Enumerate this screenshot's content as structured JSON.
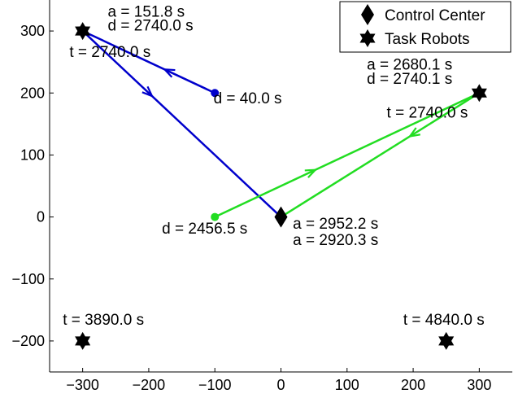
{
  "chart_data": {
    "type": "scatter",
    "xlim": [
      -350,
      350
    ],
    "ylim": [
      -250,
      350
    ],
    "x_ticks": [
      -300,
      -200,
      -100,
      0,
      100,
      200,
      300
    ],
    "y_ticks": [
      -200,
      -100,
      0,
      100,
      200,
      300
    ],
    "x_tick_labels": [
      "−300",
      "−200",
      "−100",
      "0",
      "100",
      "200",
      "300"
    ],
    "y_tick_labels": [
      "−200",
      "−100",
      "0",
      "100",
      "200",
      "300"
    ],
    "legend": {
      "position": "top-right",
      "entries": [
        {
          "label": "Control Center",
          "marker": "diamond"
        },
        {
          "label": "Task Robots",
          "marker": "hexagram"
        }
      ]
    },
    "control_center": {
      "x": 0,
      "y": 0
    },
    "task_robots": [
      {
        "x": -300,
        "y": 300
      },
      {
        "x": 300,
        "y": 200
      },
      {
        "x": -300,
        "y": -200
      },
      {
        "x": 250,
        "y": -200
      }
    ],
    "routes": [
      {
        "name": "blue robot",
        "color": "#0000cc",
        "start": {
          "x": -100,
          "y": 200
        },
        "path": [
          {
            "x": -100,
            "y": 200
          },
          {
            "x": -300,
            "y": 300
          },
          {
            "x": 0,
            "y": 0
          }
        ]
      },
      {
        "name": "green robot",
        "color": "#22dd22",
        "start": {
          "x": -100,
          "y": 0
        },
        "path": [
          {
            "x": -100,
            "y": 0
          },
          {
            "x": 300,
            "y": 200
          },
          {
            "x": 0,
            "y": 0
          }
        ]
      }
    ],
    "annotations": [
      {
        "id": "a1",
        "text": "a = 151.8 s",
        "x": -262,
        "y": 323
      },
      {
        "id": "d1",
        "text": "d = 2740.0 s",
        "x": -262,
        "y": 301
      },
      {
        "id": "t1",
        "text": "t = 2740.0 s",
        "x": -320,
        "y": 258
      },
      {
        "id": "d40",
        "text": "d = 40.0 s",
        "x": -102,
        "y": 183
      },
      {
        "id": "a2",
        "text": "a = 2680.1 s",
        "x": 130,
        "y": 238
      },
      {
        "id": "d2",
        "text": "d = 2740.1 s",
        "x": 130,
        "y": 215
      },
      {
        "id": "t2",
        "text": "t = 2740.0 s",
        "x": 160,
        "y": 160
      },
      {
        "id": "d2456",
        "text": "d = 2456.5 s",
        "x": -180,
        "y": -27
      },
      {
        "id": "a2952",
        "text": "a = 2952.2 s",
        "x": 18,
        "y": -19
      },
      {
        "id": "a2920",
        "text": "a = 2920.3 s",
        "x": 18,
        "y": -45
      },
      {
        "id": "t3",
        "text": "t = 3890.0 s",
        "x": -330,
        "y": -174
      },
      {
        "id": "t4",
        "text": "t = 4840.0 s",
        "x": 185,
        "y": -174
      }
    ]
  }
}
